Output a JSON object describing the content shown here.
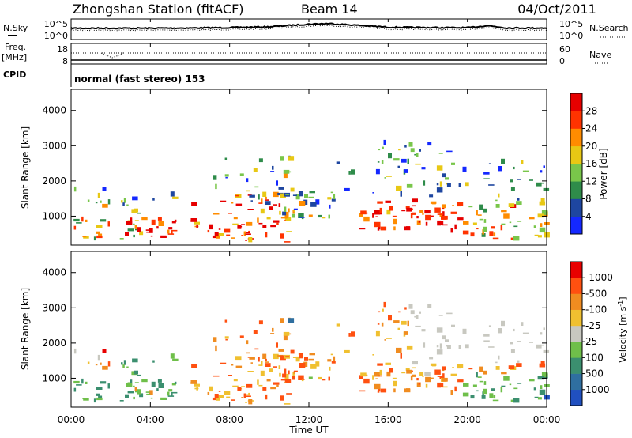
{
  "header": {
    "station": "Zhongshan Station (fitACF)",
    "beam": "Beam 14",
    "date": "04/Oct/2011"
  },
  "cpid_text": "normal (fast stereo) 153",
  "labels": {
    "nsky": "N.Sky",
    "freq": "Freq.",
    "mhz": "[MHz]",
    "cpid": "CPID",
    "nsearch": "N.Search",
    "nave": "Nave",
    "nsearch_ticks": [
      "10^5",
      "10^0"
    ],
    "nsky_ticks": [
      "10^5",
      "10^0"
    ],
    "freq_ticks": [
      "18",
      "8"
    ],
    "nave_ticks": [
      "60",
      "0"
    ]
  },
  "chart_data": [
    {
      "type": "line",
      "name": "noise-panel",
      "series": [
        {
          "name": "N.Sky",
          "style": "solid"
        },
        {
          "name": "N.Search",
          "style": "dotted"
        }
      ],
      "x": [
        "00:00",
        "02:00",
        "04:00",
        "06:00",
        "08:00",
        "10:00",
        "12:00",
        "13:00",
        "14:00",
        "16:00",
        "18:00",
        "20:00",
        "21:00",
        "22:00",
        "24:00"
      ],
      "nsky_level": [
        0.55,
        0.55,
        0.55,
        0.56,
        0.58,
        0.62,
        0.75,
        0.78,
        0.72,
        0.6,
        0.58,
        0.57,
        0.68,
        0.56,
        0.56
      ]
    },
    {
      "type": "line",
      "name": "frequency-panel",
      "xlim": [
        0,
        24
      ],
      "series": [
        {
          "name": "Freq.",
          "style": "solid",
          "value": 10
        },
        {
          "name": "Nave",
          "style": "dotted",
          "value": 45
        }
      ]
    },
    {
      "type": "heatmap",
      "name": "power-panel",
      "ylabel": "Slant Range [km]",
      "yticks": [
        1000,
        2000,
        3000,
        4000
      ],
      "ylim": [
        180,
        4600
      ],
      "xlim": [
        0,
        24
      ],
      "colorbar": {
        "label": "Power [dB]",
        "ticks": [
          "4",
          "8",
          "12",
          "16",
          "20",
          "24",
          "28"
        ],
        "colors": [
          "#1428ff",
          "#1e46a0",
          "#2f8c4a",
          "#79c64a",
          "#e8c814",
          "#ff8c00",
          "#ff3300",
          "#e60000"
        ]
      }
    },
    {
      "type": "heatmap",
      "name": "velocity-panel",
      "ylabel": "Slant Range [km]",
      "yticks": [
        1000,
        2000,
        3000,
        4000
      ],
      "ylim": [
        180,
        4600
      ],
      "xlim": [
        0,
        24
      ],
      "xticks": [
        "00:00",
        "04:00",
        "08:00",
        "12:00",
        "16:00",
        "20:00",
        "00:00"
      ],
      "xlabel": "Time UT",
      "colorbar": {
        "label": "Velocity [m s^-1]",
        "ticks": [
          "1000",
          "500",
          "100",
          "25",
          "-25",
          "-100",
          "-500",
          "-1000"
        ],
        "colors": [
          "#2050c0",
          "#2f6fa0",
          "#3b8f6f",
          "#6fbf4a",
          "#c8c8c0",
          "#f0c030",
          "#f08c20",
          "#ff5010",
          "#e80000"
        ]
      }
    }
  ]
}
